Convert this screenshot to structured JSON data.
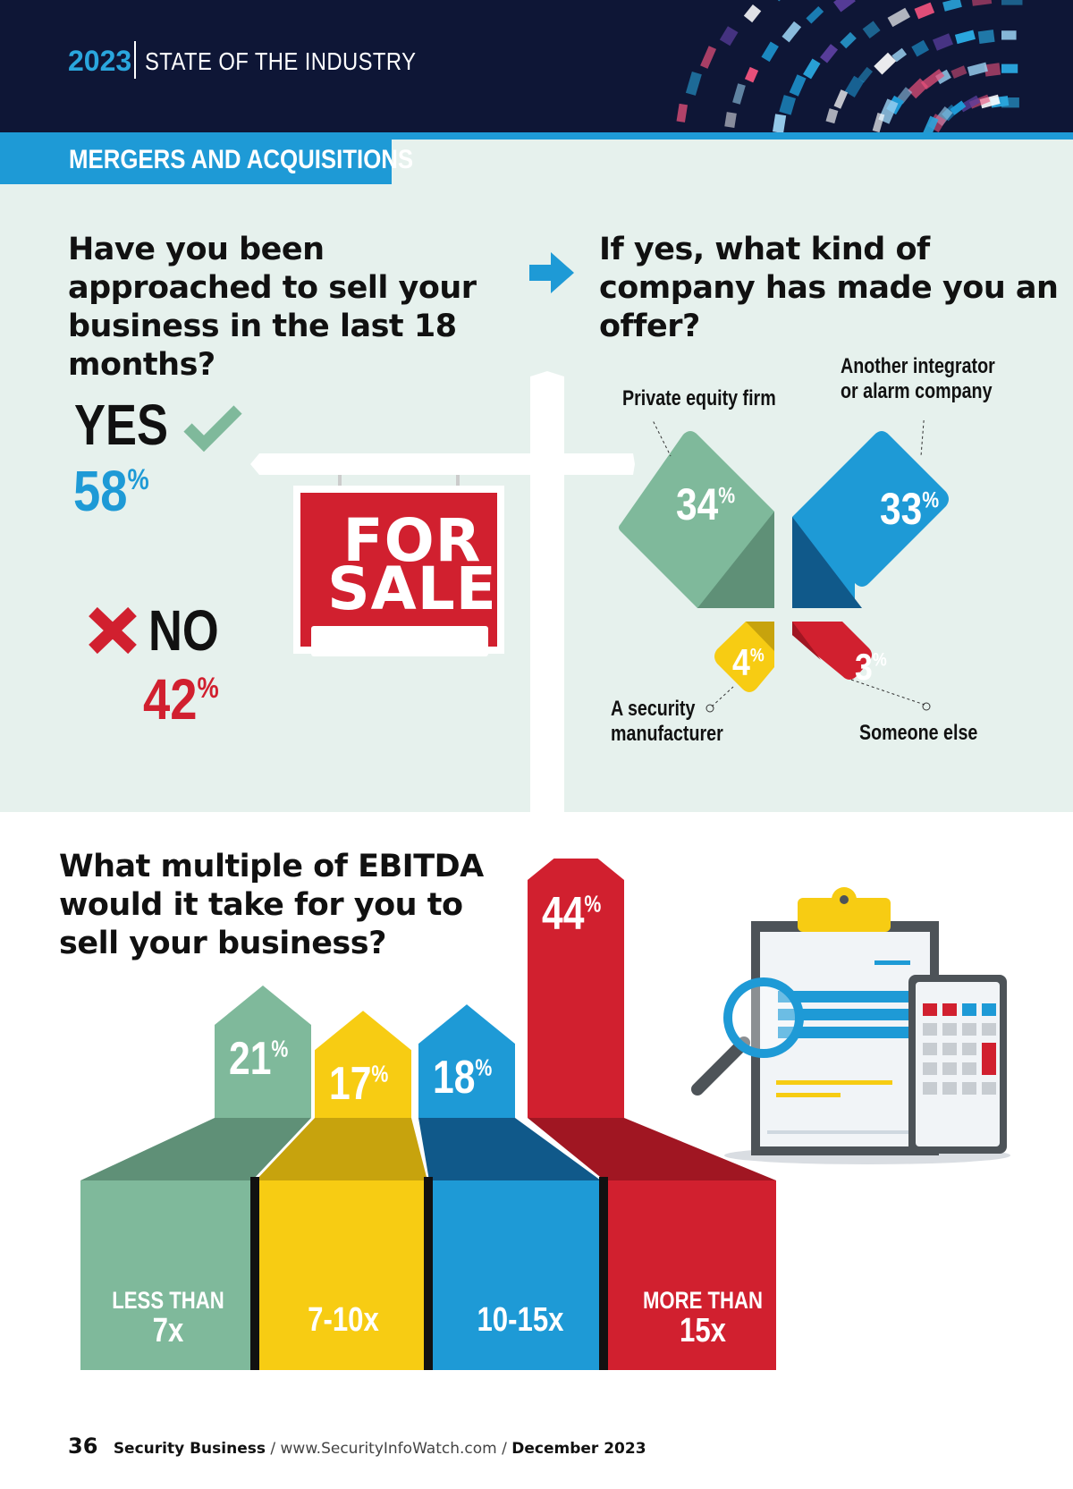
{
  "header": {
    "year": "2023",
    "title": "STATE OF THE INDUSTRY"
  },
  "section": {
    "title": "MERGERS AND ACQUISITIONS"
  },
  "question1": {
    "text": "Have you been approached to sell your business in the last 18 months?",
    "yes_label": "YES",
    "yes_pct": "58",
    "no_label": "NO",
    "no_pct": "42",
    "sign_text_line1": "FOR",
    "sign_text_line2": "SALE"
  },
  "question2": {
    "text": "If yes, what kind of company has made you an offer?"
  },
  "question3": {
    "text": "What multiple of EBITDA would it take for you to sell your business?"
  },
  "chart_data": [
    {
      "type": "bar",
      "title": "Have you been approached to sell your business in the last 18 months?",
      "categories": [
        "YES",
        "NO"
      ],
      "values": [
        58,
        42
      ],
      "unit": "%"
    },
    {
      "type": "pie",
      "title": "If yes, what kind of company has made you an offer?",
      "categories": [
        "Private equity firm",
        "Another integrator or alarm company",
        "A security manufacturer",
        "Someone else"
      ],
      "values": [
        34,
        33,
        4,
        3
      ],
      "unit": "%",
      "colors": [
        "#7fb99b",
        "#1e9ad6",
        "#f7cc13",
        "#d1202f"
      ]
    },
    {
      "type": "bar",
      "title": "What multiple of EBITDA would it take for you to sell your business?",
      "categories": [
        "LESS THAN 7x",
        "7-10x",
        "10-15x",
        "MORE THAN 15x"
      ],
      "values": [
        21,
        17,
        18,
        44
      ],
      "unit": "%",
      "colors": [
        "#7fb99b",
        "#f7cc13",
        "#1e9ad6",
        "#d1202f"
      ]
    }
  ],
  "offer_labels": {
    "pe": "Private equity firm",
    "int": "Another integrator or alarm company",
    "mfr": "A security manufacturer",
    "else": "Someone else"
  },
  "offer_pcts": {
    "pe": "34",
    "int": "33",
    "mfr": "4",
    "else": "3"
  },
  "ebitda_labels": {
    "b1_small": "LESS THAN",
    "b1_big": "7x",
    "b2_big": "7-10x",
    "b3_big": "10-15x",
    "b4_small": "MORE THAN",
    "b4_big": "15x"
  },
  "ebitda_pcts": {
    "b1": "21",
    "b2": "17",
    "b3": "18",
    "b4": "44"
  },
  "percent_sign": "%",
  "footer": {
    "page": "36",
    "magazine": "Security Business",
    "sep": " / ",
    "url": "www.SecurityInfoWatch.com",
    "date": "December 2023"
  }
}
